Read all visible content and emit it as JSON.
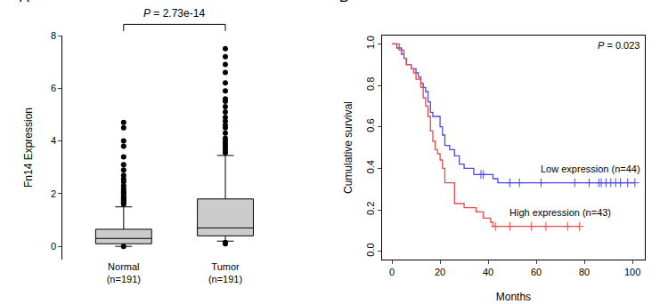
{
  "chart_data": [
    {
      "title": "A",
      "type": "box",
      "y_label": "Fn14 Expression",
      "annotation": "P = 2.73e-14",
      "categories": [
        "Normal\n(n=191)",
        "Tumor\n(n=191)"
      ],
      "color": "#cccccc",
      "q1": [
        0.1,
        0.4
      ],
      "median": [
        0.3,
        0.7
      ],
      "q3": [
        0.65,
        1.8
      ],
      "lowerfence": [
        0.0,
        0.2
      ],
      "upperfence": [
        1.5,
        3.45
      ],
      "outliers": [
        [
          0.0,
          1.6,
          1.65,
          1.7,
          1.75,
          1.8,
          1.85,
          1.9,
          2.0,
          2.05,
          2.1,
          2.2,
          2.3,
          2.45,
          2.55,
          2.7,
          2.9,
          3.1,
          3.4,
          3.8,
          4.0,
          4.5,
          4.7
        ],
        [
          0.1,
          0.15,
          3.55,
          3.6,
          3.7,
          3.8,
          3.9,
          4.0,
          4.1,
          4.3,
          4.5,
          4.6,
          4.75,
          4.9,
          5.1,
          5.3,
          5.5,
          5.6,
          5.9,
          6.2,
          6.6,
          6.9,
          7.2,
          7.5
        ]
      ],
      "ylim": [
        -0.5,
        8
      ],
      "yticks": [
        0,
        2,
        4,
        6,
        8
      ],
      "grid": false
    },
    {
      "title": "B",
      "type": "line",
      "x_label": "Months",
      "y_label": "Cumulative survival",
      "annotation": "P = 0.023",
      "line_style": "step",
      "marker": "cross",
      "legend": "none",
      "grid": false,
      "xlim": [
        -4,
        105
      ],
      "xticks": [
        0,
        20,
        40,
        60,
        80,
        100
      ],
      "ylim": [
        -0.04,
        1.04
      ],
      "yticks": [
        {
          "value": 0,
          "label": "0.0"
        },
        0.2,
        0.4,
        0.6,
        0.8,
        {
          "value": 1,
          "label": "1.0"
        }
      ],
      "series": [
        {
          "name": "Low expression (n=44)",
          "color": "#4a4ae8",
          "x": [
            0,
            2,
            4,
            5,
            6,
            8,
            10,
            11,
            12,
            13,
            14,
            15,
            16,
            17,
            20,
            21,
            22,
            24,
            26,
            28,
            30,
            34,
            42,
            44,
            101
          ],
          "values": [
            1.0,
            0.98,
            0.95,
            0.93,
            0.9,
            0.88,
            0.86,
            0.84,
            0.81,
            0.79,
            0.77,
            0.72,
            0.67,
            0.65,
            0.6,
            0.56,
            0.51,
            0.49,
            0.46,
            0.42,
            0.4,
            0.37,
            0.35,
            0.33,
            0.33
          ],
          "censored_x": [
            37,
            38,
            49,
            53,
            62,
            76,
            82,
            86,
            87,
            89,
            91,
            93,
            95,
            98,
            101
          ],
          "censored_values": [
            0.37,
            0.37,
            0.33,
            0.33,
            0.33,
            0.33,
            0.33,
            0.33,
            0.33,
            0.33,
            0.33,
            0.33,
            0.33,
            0.33,
            0.33
          ]
        },
        {
          "name": "High expression (n=43)",
          "color": "#e84a4a",
          "x": [
            0,
            3,
            5,
            6,
            8,
            9,
            10,
            12,
            13,
            14,
            15,
            16,
            17,
            18,
            19,
            20,
            21,
            22,
            26,
            30,
            35,
            38,
            41,
            42,
            78
          ],
          "values": [
            1.0,
            0.97,
            0.93,
            0.9,
            0.88,
            0.86,
            0.83,
            0.79,
            0.74,
            0.7,
            0.65,
            0.58,
            0.53,
            0.49,
            0.47,
            0.44,
            0.4,
            0.33,
            0.23,
            0.21,
            0.19,
            0.16,
            0.14,
            0.12,
            0.12
          ],
          "censored_x": [
            43,
            49,
            58,
            64,
            73,
            78
          ],
          "censored_values": [
            0.12,
            0.12,
            0.12,
            0.12,
            0.12,
            0.12
          ]
        }
      ]
    }
  ]
}
